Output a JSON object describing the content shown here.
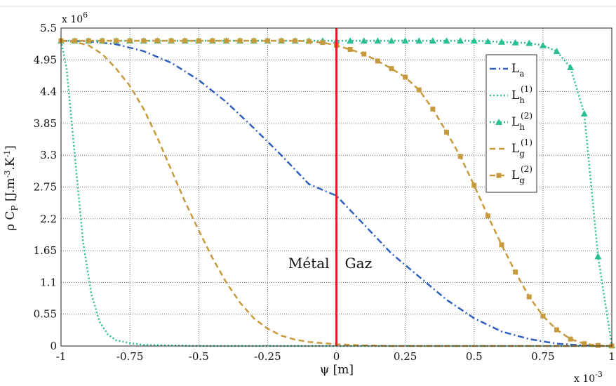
{
  "chart_data": {
    "type": "line",
    "xlabel": "ψ [m]",
    "ylabel": "ρ C_P [J.m^-3.K^-1]",
    "x_multiplier": "x 10^-3",
    "y_multiplier": "x 10^6",
    "xlim": [
      -1,
      1
    ],
    "ylim": [
      0,
      5.5
    ],
    "x_ticks": [
      -1,
      -0.75,
      -0.5,
      -0.25,
      0,
      0.25,
      0.5,
      0.75,
      1
    ],
    "x_tick_labels": [
      "-1",
      "-0.75",
      "-0.5",
      "-0.25",
      "0",
      "0.25",
      "0.5",
      "0.75",
      "1"
    ],
    "y_ticks": [
      0,
      0.55,
      1.1,
      1.65,
      2.2,
      2.75,
      3.3,
      3.85,
      4.4,
      4.95,
      5.5
    ],
    "y_tick_labels": [
      "0",
      "0.55",
      "1.1",
      "1.65",
      "2.2",
      "2.75",
      "3.3",
      "3.85",
      "4.4",
      "4.95",
      "5.5"
    ],
    "grid": true,
    "legend_position": "top-right",
    "annotations": [
      {
        "text": "Métal",
        "x": -0.1,
        "y": 1.35
      },
      {
        "text": "Gaz",
        "x": 0.08,
        "y": 1.35
      }
    ],
    "interface_line": {
      "x": 0,
      "color": "#e02020"
    },
    "series": [
      {
        "name": "L_a",
        "label_main": "L",
        "label_sub": "a",
        "label_sup": "",
        "color": "#2f5fbf",
        "dash": "9,4,2,4",
        "marker": "none",
        "points": [
          [
            -1,
            5.28
          ],
          [
            -0.9,
            5.27
          ],
          [
            -0.8,
            5.22
          ],
          [
            -0.7,
            5.1
          ],
          [
            -0.6,
            4.9
          ],
          [
            -0.5,
            4.6
          ],
          [
            -0.4,
            4.22
          ],
          [
            -0.3,
            3.77
          ],
          [
            -0.2,
            3.3
          ],
          [
            -0.1,
            2.8
          ],
          [
            0,
            2.6
          ],
          [
            0.1,
            2.1
          ],
          [
            0.2,
            1.6
          ],
          [
            0.3,
            1.2
          ],
          [
            0.4,
            0.8
          ],
          [
            0.5,
            0.48
          ],
          [
            0.6,
            0.25
          ],
          [
            0.7,
            0.12
          ],
          [
            0.8,
            0.04
          ],
          [
            0.9,
            0.01
          ],
          [
            1,
            0
          ]
        ]
      },
      {
        "name": "L_h^(1)",
        "label_main": "L",
        "label_sub": "h",
        "label_sup": "(1)",
        "color": "#2bbf95",
        "dash": "2,3",
        "marker": "none",
        "points": [
          [
            -1,
            5.28
          ],
          [
            -0.98,
            4.8
          ],
          [
            -0.95,
            3.3
          ],
          [
            -0.92,
            1.8
          ],
          [
            -0.89,
            0.9
          ],
          [
            -0.86,
            0.42
          ],
          [
            -0.83,
            0.2
          ],
          [
            -0.8,
            0.1
          ],
          [
            -0.75,
            0.05
          ],
          [
            -0.7,
            0.02
          ],
          [
            -0.6,
            0.01
          ],
          [
            -0.5,
            0
          ],
          [
            1,
            0
          ]
        ]
      },
      {
        "name": "L_h^(2)",
        "label_main": "L",
        "label_sub": "h",
        "label_sup": "(2)",
        "color": "#2bbf95",
        "dash": "2,3",
        "marker": "triangle",
        "points": [
          [
            -1,
            5.28
          ],
          [
            -0.95,
            5.28
          ],
          [
            -0.9,
            5.28
          ],
          [
            -0.85,
            5.28
          ],
          [
            -0.8,
            5.28
          ],
          [
            -0.75,
            5.28
          ],
          [
            -0.7,
            5.28
          ],
          [
            -0.65,
            5.28
          ],
          [
            -0.6,
            5.28
          ],
          [
            -0.55,
            5.28
          ],
          [
            -0.5,
            5.28
          ],
          [
            -0.45,
            5.28
          ],
          [
            -0.4,
            5.28
          ],
          [
            -0.35,
            5.28
          ],
          [
            -0.3,
            5.28
          ],
          [
            -0.25,
            5.28
          ],
          [
            -0.2,
            5.28
          ],
          [
            -0.15,
            5.28
          ],
          [
            -0.1,
            5.28
          ],
          [
            -0.05,
            5.28
          ],
          [
            0,
            5.28
          ],
          [
            0.05,
            5.28
          ],
          [
            0.1,
            5.28
          ],
          [
            0.15,
            5.28
          ],
          [
            0.2,
            5.28
          ],
          [
            0.25,
            5.28
          ],
          [
            0.3,
            5.28
          ],
          [
            0.35,
            5.28
          ],
          [
            0.4,
            5.28
          ],
          [
            0.45,
            5.28
          ],
          [
            0.5,
            5.28
          ],
          [
            0.55,
            5.27
          ],
          [
            0.6,
            5.26
          ],
          [
            0.65,
            5.25
          ],
          [
            0.7,
            5.24
          ],
          [
            0.75,
            5.2
          ],
          [
            0.8,
            5.1
          ],
          [
            0.85,
            4.82
          ],
          [
            0.9,
            4.02
          ],
          [
            0.95,
            1.55
          ],
          [
            1,
            0.01
          ]
        ]
      },
      {
        "name": "L_g^(1)",
        "label_main": "L",
        "label_sub": "g",
        "label_sup": "(1)",
        "color": "#c89a3e",
        "dash": "8,5",
        "marker": "none",
        "points": [
          [
            -1,
            5.28
          ],
          [
            -0.95,
            5.26
          ],
          [
            -0.9,
            5.2
          ],
          [
            -0.85,
            5.05
          ],
          [
            -0.8,
            4.8
          ],
          [
            -0.75,
            4.5
          ],
          [
            -0.7,
            4.1
          ],
          [
            -0.65,
            3.6
          ],
          [
            -0.6,
            3.05
          ],
          [
            -0.55,
            2.5
          ],
          [
            -0.5,
            2.0
          ],
          [
            -0.45,
            1.52
          ],
          [
            -0.4,
            1.1
          ],
          [
            -0.35,
            0.75
          ],
          [
            -0.3,
            0.48
          ],
          [
            -0.25,
            0.3
          ],
          [
            -0.2,
            0.18
          ],
          [
            -0.15,
            0.11
          ],
          [
            -0.1,
            0.07
          ],
          [
            -0.05,
            0.05
          ],
          [
            0,
            0.03
          ],
          [
            0.1,
            0.01
          ],
          [
            0.2,
            0
          ],
          [
            1,
            0
          ]
        ]
      },
      {
        "name": "L_g^(2)",
        "label_main": "L",
        "label_sub": "g",
        "label_sup": "(2)",
        "color": "#c89a3e",
        "dash": "8,5",
        "marker": "square",
        "points": [
          [
            -1,
            5.28
          ],
          [
            -0.95,
            5.28
          ],
          [
            -0.9,
            5.28
          ],
          [
            -0.85,
            5.28
          ],
          [
            -0.8,
            5.28
          ],
          [
            -0.75,
            5.28
          ],
          [
            -0.7,
            5.28
          ],
          [
            -0.65,
            5.28
          ],
          [
            -0.6,
            5.28
          ],
          [
            -0.55,
            5.28
          ],
          [
            -0.5,
            5.28
          ],
          [
            -0.45,
            5.28
          ],
          [
            -0.4,
            5.28
          ],
          [
            -0.35,
            5.28
          ],
          [
            -0.3,
            5.28
          ],
          [
            -0.25,
            5.28
          ],
          [
            -0.2,
            5.28
          ],
          [
            -0.15,
            5.28
          ],
          [
            -0.1,
            5.27
          ],
          [
            -0.05,
            5.25
          ],
          [
            0,
            5.2
          ],
          [
            0.05,
            5.13
          ],
          [
            0.1,
            5.05
          ],
          [
            0.15,
            4.93
          ],
          [
            0.2,
            4.8
          ],
          [
            0.25,
            4.65
          ],
          [
            0.3,
            4.43
          ],
          [
            0.35,
            4.1
          ],
          [
            0.4,
            3.7
          ],
          [
            0.45,
            3.28
          ],
          [
            0.5,
            2.78
          ],
          [
            0.55,
            2.25
          ],
          [
            0.6,
            1.75
          ],
          [
            0.65,
            1.28
          ],
          [
            0.7,
            0.85
          ],
          [
            0.75,
            0.52
          ],
          [
            0.8,
            0.28
          ],
          [
            0.85,
            0.12
          ],
          [
            0.9,
            0.04
          ],
          [
            0.95,
            0.01
          ],
          [
            1,
            0
          ]
        ]
      }
    ]
  }
}
